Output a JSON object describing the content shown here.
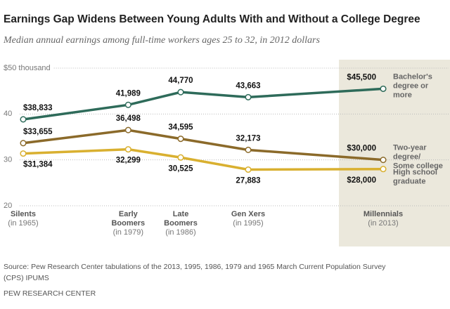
{
  "chart_data": {
    "type": "line",
    "title": "Earnings Gap Widens Between Young Adults With and Without a College Degree",
    "subtitle": "Median annual earnings among full-time workers ages 25 to 32, in 2012 dollars",
    "categories": [
      {
        "lines": [
          "Silents"
        ],
        "note": "(in 1965)"
      },
      {
        "lines": [
          "Early",
          "Boomers"
        ],
        "note": "(in 1979)"
      },
      {
        "lines": [
          "Late",
          "Boomers"
        ],
        "note": "(in 1986)"
      },
      {
        "lines": [
          "Gen Xers"
        ],
        "note": "(in 1995)"
      },
      {
        "lines": [
          "Millennials"
        ],
        "note": "(in 2013)"
      }
    ],
    "x": [
      1965,
      1979,
      1986,
      1995,
      2013
    ],
    "xlim": [
      1965,
      2013
    ],
    "ylim": [
      20,
      50
    ],
    "yticks": [
      20,
      30,
      40,
      {
        "value": 50,
        "label": "$50 thousand"
      }
    ],
    "grid": true,
    "series": [
      {
        "name": [
          "Bachelor's",
          "degree or",
          "more"
        ],
        "color": "#2e6b5a",
        "values": [
          38.833,
          41.989,
          44.77,
          43.663,
          45.5
        ],
        "value_labels": [
          "$38,833",
          "41,989",
          "44,770",
          "43,663",
          "$45,500"
        ]
      },
      {
        "name": [
          "Two-year",
          "degree/",
          "Some college"
        ],
        "color": "#8b6a2a",
        "values": [
          33.655,
          36.498,
          34.595,
          32.173,
          30.0
        ],
        "value_labels": [
          "$33,655",
          "36,498",
          "34,595",
          "32,173",
          "$30,000"
        ]
      },
      {
        "name": [
          "High school",
          "graduate"
        ],
        "color": "#d9b030",
        "values": [
          31.384,
          32.299,
          30.525,
          27.883,
          28.0
        ],
        "value_labels": [
          "$31,384",
          "32,299",
          "30,525",
          "27,883",
          "$28,000"
        ]
      }
    ],
    "source": [
      "Source: Pew Research Center tabulations of the 2013, 1995, 1986, 1979 and 1965 March Current Population Survey",
      "(CPS) IPUMS"
    ],
    "credit": "PEW RESEARCH CENTER"
  }
}
